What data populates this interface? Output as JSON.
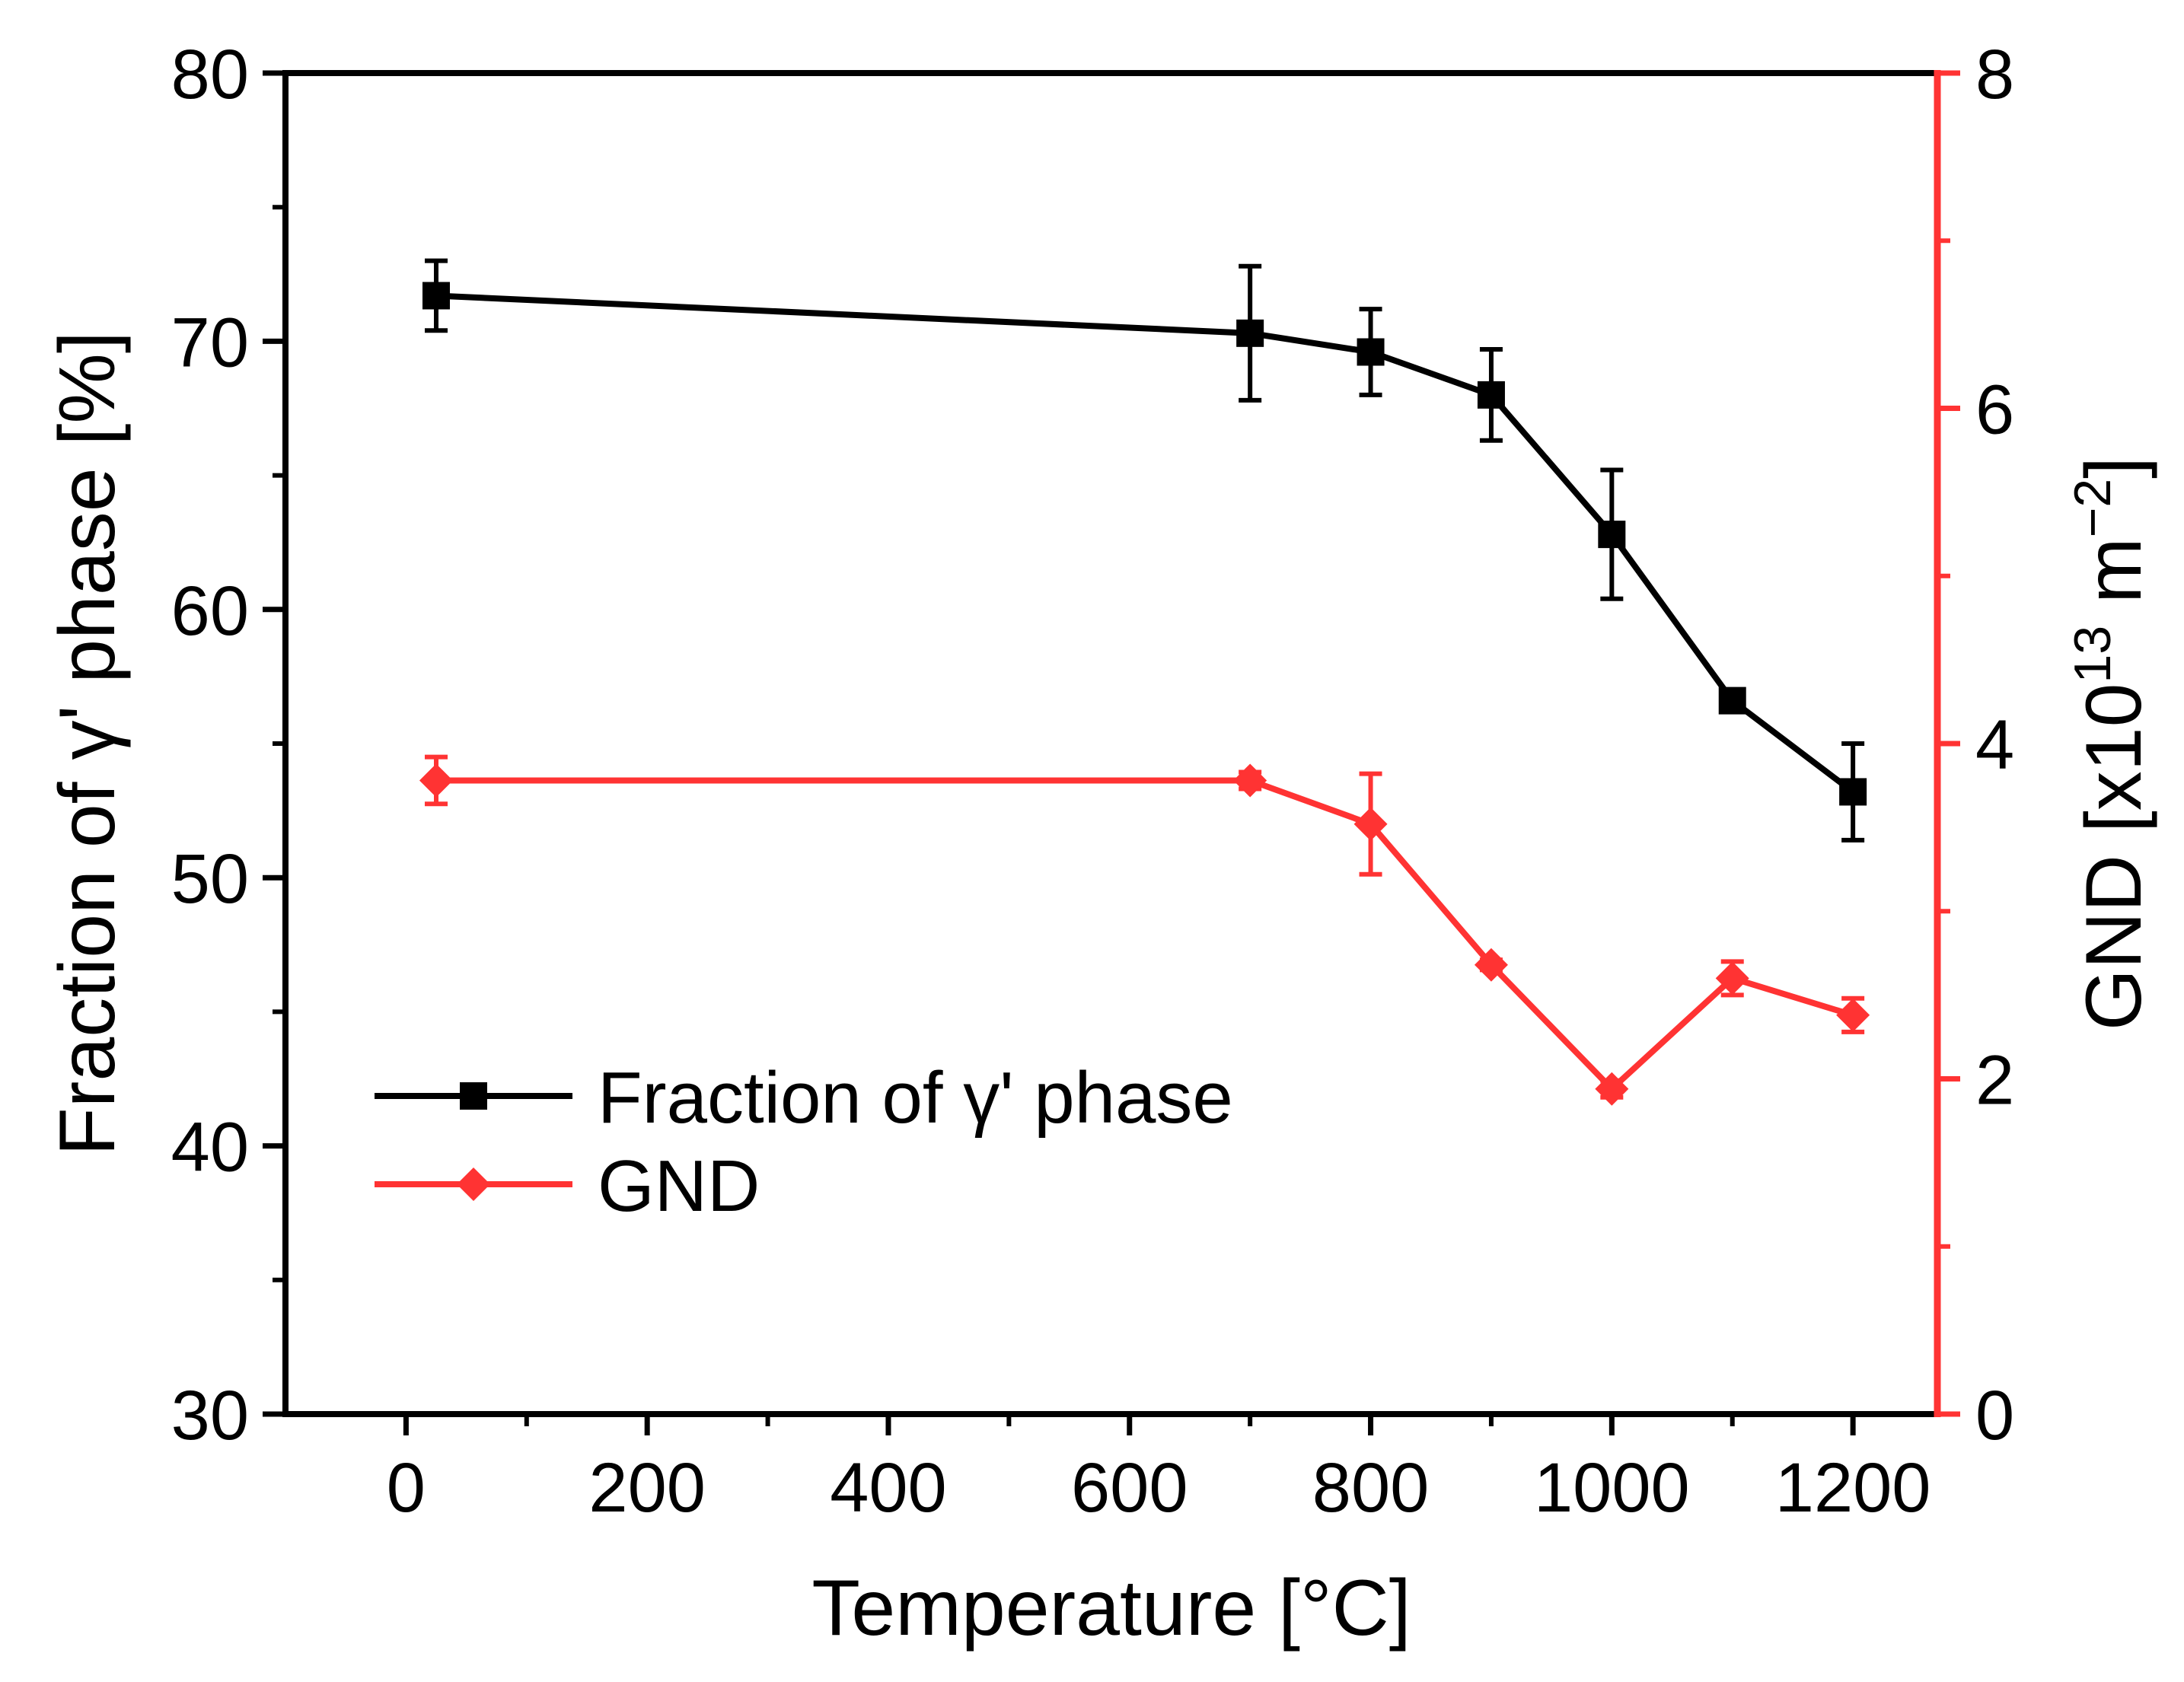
{
  "chart_data": {
    "type": "line",
    "xlabel": "Temperature [°C]",
    "ylabel": "Fraction of γ' phase [%]",
    "y2label_main": "GND [x10",
    "y2label_sup": "13",
    "y2label_unit": " m",
    "y2label_unit_sup": "−2",
    "y2label_close": "]",
    "xlim": [
      -100,
      1270
    ],
    "ylim": [
      30,
      80
    ],
    "y2lim": [
      0,
      8
    ],
    "xticks": [
      0,
      200,
      400,
      600,
      800,
      1000,
      1200
    ],
    "yticks": [
      30,
      40,
      50,
      60,
      70,
      80
    ],
    "y2ticks": [
      0,
      2,
      4,
      6,
      8
    ],
    "legend_position": "lower-left",
    "colors": {
      "left_axis": "#000000",
      "right_axis": "#ff3333"
    },
    "series": [
      {
        "name": "Fraction of γ' phase",
        "axis": "left",
        "marker": "square",
        "color": "#000000",
        "x": [
          25,
          700,
          800,
          900,
          1000,
          1100,
          1200
        ],
        "y": [
          71.7,
          70.3,
          69.6,
          68.0,
          62.8,
          56.6,
          53.2
        ],
        "err": [
          1.3,
          2.5,
          1.6,
          1.7,
          2.4,
          0.4,
          1.8
        ]
      },
      {
        "name": "GND",
        "axis": "right",
        "marker": "diamond",
        "color": "#ff3333",
        "x": [
          25,
          700,
          800,
          900,
          1000,
          1100,
          1200
        ],
        "y": [
          3.78,
          3.78,
          3.52,
          2.68,
          1.94,
          2.6,
          2.38
        ],
        "err": [
          0.14,
          0.05,
          0.3,
          0.03,
          0.05,
          0.1,
          0.1
        ]
      }
    ]
  }
}
